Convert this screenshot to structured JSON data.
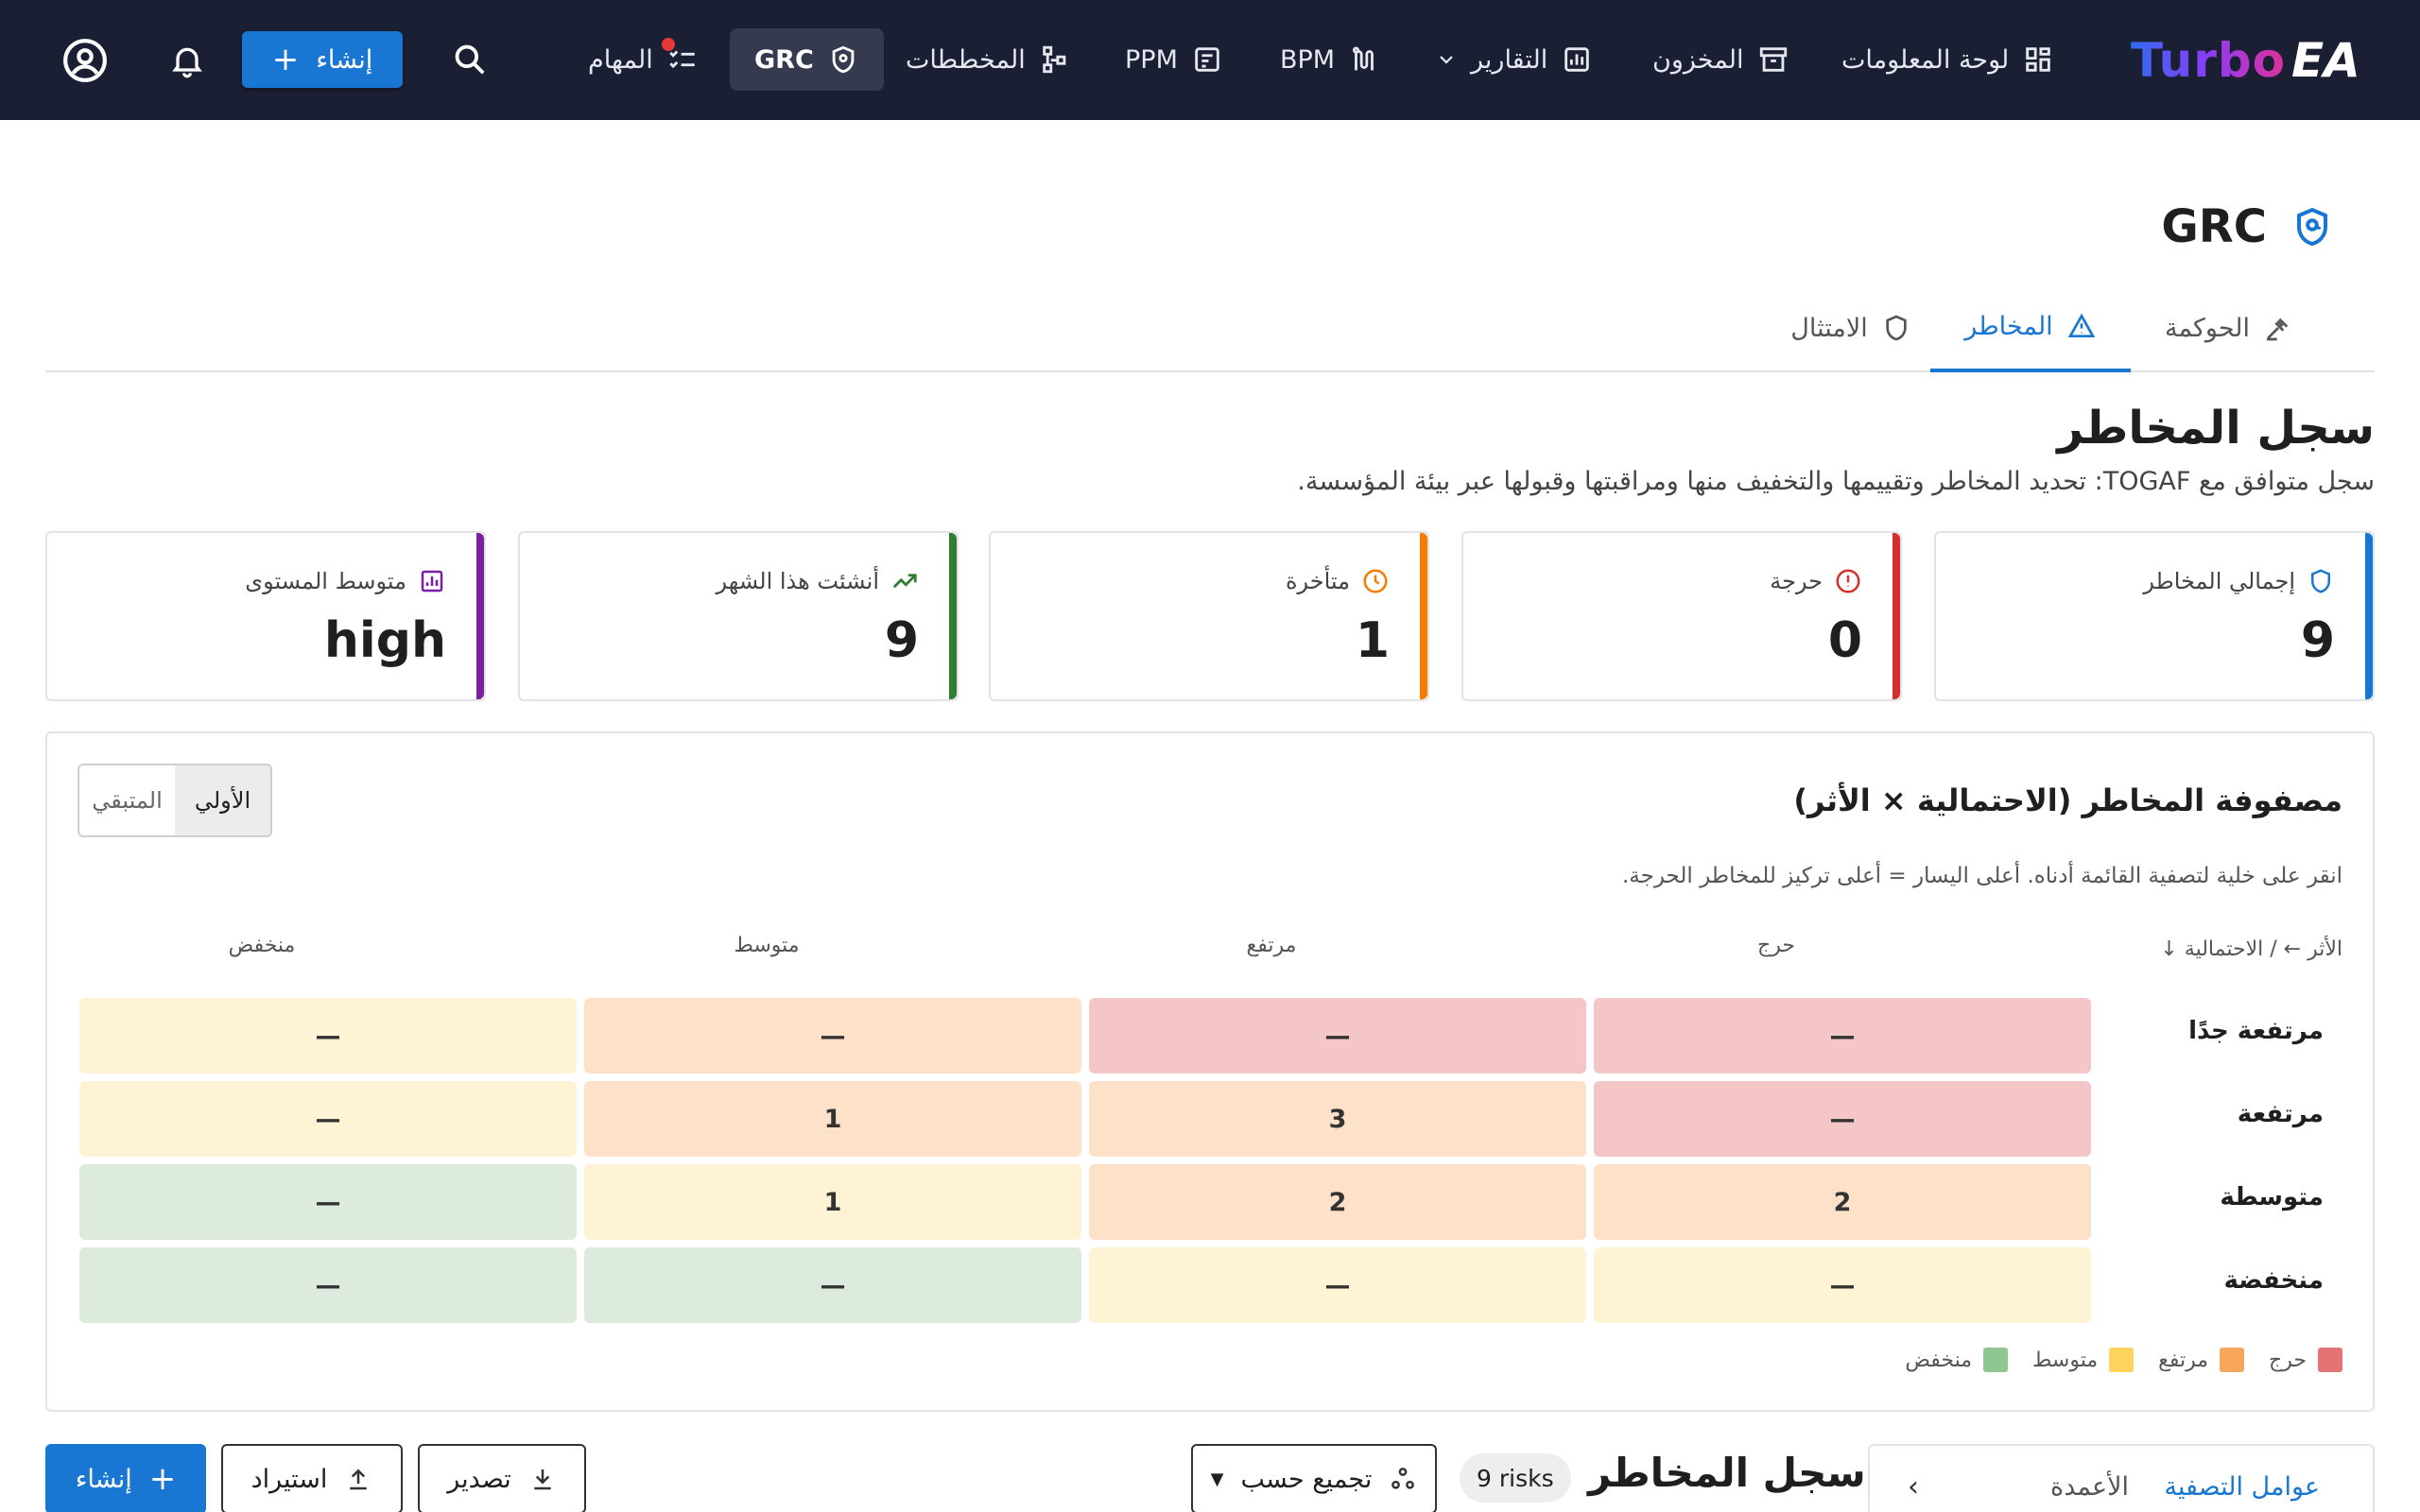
{
  "topbar": {
    "logo_turbo": "Turbo",
    "logo_ea": "EA",
    "nav": {
      "dashboard": "لوحة المعلومات",
      "inventory": "المخزون",
      "reports": "التقارير",
      "bpm": "BPM",
      "ppm": "PPM",
      "diagrams": "المخططات",
      "grc": "GRC",
      "tasks": "المهام"
    },
    "create_label": "إنشاء"
  },
  "page": {
    "title": "GRC",
    "tabs": {
      "governance": "الحوكمة",
      "risks": "المخاطر",
      "compliance": "الامتثال"
    },
    "section_title": "سجل المخاطر",
    "section_subtitle": "سجل متوافق مع TOGAF: تحديد المخاطر وتقييمها والتخفيف منها ومراقبتها وقبولها عبر بيئة المؤسسة."
  },
  "kpis": [
    {
      "label": "إجمالي المخاطر",
      "value": "9",
      "color": "#1976d2",
      "icon": "shield-icon"
    },
    {
      "label": "حرجة",
      "value": "0",
      "color": "#d32f2f",
      "icon": "alert-circle-icon"
    },
    {
      "label": "متأخرة",
      "value": "1",
      "color": "#f57c00",
      "icon": "clock-icon"
    },
    {
      "label": "أنشئت هذا الشهر",
      "value": "9",
      "color": "#2e7d32",
      "icon": "trending-up-icon"
    },
    {
      "label": "متوسط المستوى",
      "value": "high",
      "color": "#7b1fa2",
      "icon": "chart-box-icon"
    }
  ],
  "matrix": {
    "title": "مصفوفة المخاطر (الاحتمالية × الأثر)",
    "hint": "انقر على خلية لتصفية القائمة أدناه. أعلى اليسار = أعلى تركيز للمخاطر الحرجة.",
    "toggle": {
      "initial": "الأولي",
      "residual": "المتبقي"
    },
    "axis_label": "الأثر ← / الاحتمالية ↓",
    "columns": [
      "حرج",
      "مرتفع",
      "متوسط",
      "منخفض"
    ],
    "rows": [
      {
        "label": "مرتفعة جدًا",
        "cells": [
          "—",
          "—",
          "—",
          "—"
        ],
        "colors": [
          "#f4c6c8",
          "#f4c6c8",
          "#fde1c9",
          "#fff3d6"
        ]
      },
      {
        "label": "مرتفعة",
        "cells": [
          "—",
          "3",
          "1",
          "—"
        ],
        "colors": [
          "#f4c6c8",
          "#fde1c9",
          "#fde1c9",
          "#fff3d6"
        ]
      },
      {
        "label": "متوسطة",
        "cells": [
          "2",
          "2",
          "1",
          "—"
        ],
        "colors": [
          "#fde1c9",
          "#fde1c9",
          "#fff3d6",
          "#dcebdd"
        ]
      },
      {
        "label": "منخفضة",
        "cells": [
          "—",
          "—",
          "—",
          "—"
        ],
        "colors": [
          "#fff3d6",
          "#fff3d6",
          "#dcebdd",
          "#dcebdd"
        ]
      }
    ],
    "legend": [
      {
        "label": "حرج",
        "color": "#e57373"
      },
      {
        "label": "مرتفع",
        "color": "#f6a75c"
      },
      {
        "label": "متوسط",
        "color": "#ffd35c"
      },
      {
        "label": "منخفض",
        "color": "#8fc691"
      }
    ]
  },
  "register": {
    "filters_label": "عوامل التصفية",
    "columns_label": "الأعمدة",
    "title": "سجل المخاطر",
    "count": "9 risks",
    "group_by": "تجميع حسب",
    "export": "تصدير",
    "import": "استيراد",
    "create": "إنشاء"
  }
}
